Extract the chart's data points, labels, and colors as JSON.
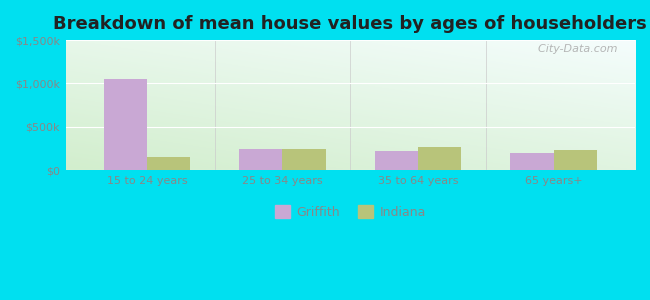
{
  "title": "Breakdown of mean house values by ages of householders",
  "categories": [
    "15 to 24 years",
    "25 to 34 years",
    "35 to 64 years",
    "65 years+"
  ],
  "griffith_values": [
    1050000,
    250000,
    225000,
    200000
  ],
  "indiana_values": [
    155000,
    245000,
    270000,
    235000
  ],
  "griffith_color": "#c9a8d4",
  "indiana_color": "#b8c47a",
  "ylim": [
    0,
    1500000
  ],
  "yticks": [
    0,
    500000,
    1000000,
    1500000
  ],
  "ytick_labels": [
    "$0",
    "$500k",
    "$1,000k",
    "$1,500k"
  ],
  "title_fontsize": 13,
  "watermark": "  City-Data.com",
  "background_outer": "#00e0f0",
  "bar_width": 0.32,
  "legend_labels": [
    "Griffith",
    "Indiana"
  ],
  "tick_color": "#888888",
  "title_color": "#222222"
}
